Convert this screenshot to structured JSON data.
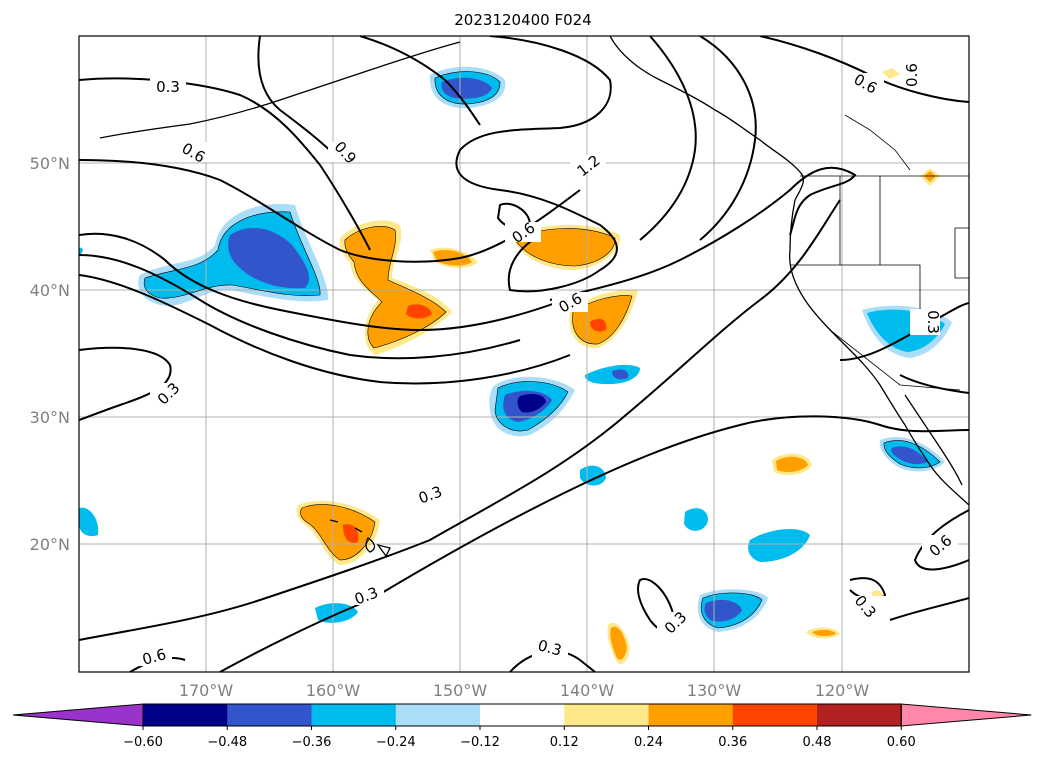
{
  "title": "2023120400 F024",
  "map": {
    "lat_labels": [
      "50°N",
      "40°N",
      "30°N",
      "20°N"
    ],
    "lon_labels": [
      "170°W",
      "160°W",
      "150°W",
      "140°W",
      "130°W",
      "120°W"
    ],
    "label_color": "#808080",
    "contour_labels": [
      {
        "text": "0.3"
      },
      {
        "text": "0.6"
      },
      {
        "text": "0.9"
      },
      {
        "text": "1.2"
      },
      {
        "text": "0.6"
      },
      {
        "text": "0.6"
      },
      {
        "text": "0.3"
      },
      {
        "text": "0.3"
      },
      {
        "text": "0.3"
      },
      {
        "text": "0.6"
      },
      {
        "text": "0.3"
      },
      {
        "text": "0.3"
      },
      {
        "text": "0.6"
      },
      {
        "text": "0.3"
      },
      {
        "text": "0.6"
      },
      {
        "text": "0.3"
      },
      {
        "text": "0.6"
      }
    ]
  },
  "colorbar": {
    "ticks": [
      "−0.60",
      "−0.48",
      "−0.36",
      "−0.24",
      "−0.12",
      "0.12",
      "0.24",
      "0.36",
      "0.48",
      "0.60"
    ],
    "colors": [
      "#9933cc",
      "#00008b",
      "#3355cc",
      "#00bbee",
      "#aaddf8",
      "#ffffff",
      "#ffe88a",
      "#ffa000",
      "#ff4400",
      "#b22222",
      "#ff88aa"
    ]
  }
}
